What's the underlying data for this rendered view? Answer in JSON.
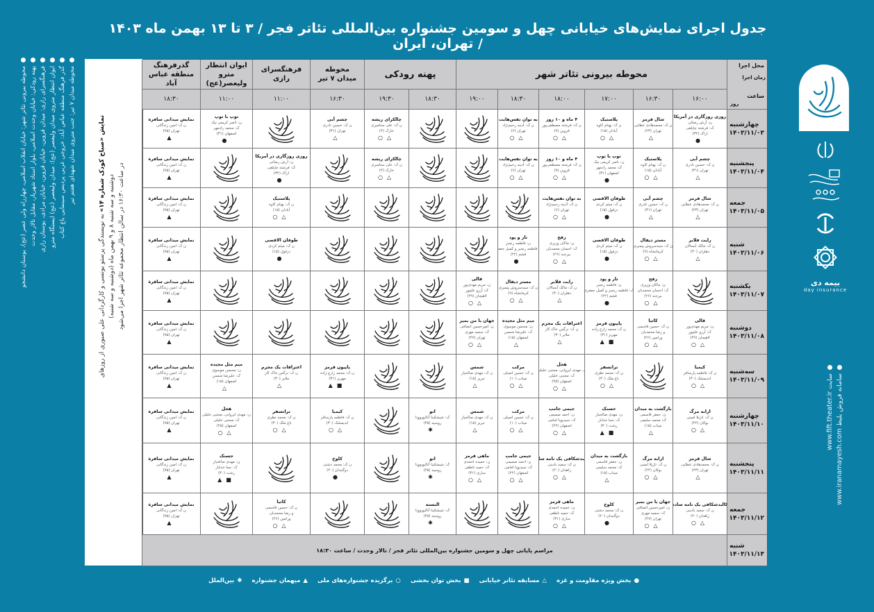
{
  "title": "جدول اجرای نمایش‌های خیابانی چهل و سومین جشنواره بین‌المللی تئاتر فجر / ۳ تا ۱۳ بهمن ماه ۱۴۰۳ / تهران، ایران",
  "sidebar": [
    "محوطه بیرونی تئاتر شهر: خیابان انقلاب اسلامی، چهارراه ولی عصر (عج)، بوستان دانشجو",
    "پهنه رودکی: خیابان وحدت اسلامی، بلوار استاد شهریار، مقابل تالار وحدت",
    "فرهنگسرای رازی: میدان قزوین، خیابان قزوین، خیابان مرادی، بوستان رازی",
    "ایوان انتظار متروی میدان ولیعصر (عج): میدان ولیعصر (عج) ایستگاه مترو",
    "گذر فرهنگ منطقه عباس آباد: خروجی غربی پردیس سینمایی باغ کتاب",
    "محوطه میدان ۷ تیر: جنب متروی میدان شهدای هفتم تیر"
  ],
  "note": {
    "bold": "نمایش «صباح کودک شماره ۱۴»",
    "line1": "به نویسندگی پرستو یونسی و کارگردانی علی صبوری از روزهای دوشنبه و سه شنبه ۸ و ۹ بهمن ماه (دوشنبه و سه شنبه)",
    "line2": "در ساعت ۱۶:۳۰ در سالن انتظار مجموعه تئاتر شهر اجرا می‌شود"
  },
  "right_strip": [
    "سایت www.fift.theater.ir",
    "سامانه فروش بلیط www.iranamayesh.com"
  ],
  "sponsors": {
    "insurance_name": "بیمه دی",
    "insurance_latin": "day insurance"
  },
  "table": {
    "corner": {
      "venue": "محل اجرا",
      "time": "زمان اجرا",
      "hour": "ساعت",
      "day": "روز"
    },
    "venues": [
      "محوطه بیرونی تئاتر شهر",
      "پهنه رودکی",
      "محوطه\nمیدان ۷ تیر",
      "فرهنگسرای\nرازی",
      "ایوان انتظار\nمترو ولیعصر(عج)",
      "گذرفرهنگ\nمنطقه عباس آباد"
    ],
    "times": [
      "۱۶:۰۰",
      "۱۶:۳۰",
      "۱۷:۰۰",
      "۱۸:۰۰",
      "۱۸:۳۰",
      "۱۹:۰۰",
      "۱۸:۳۰",
      "۱۹:۳۰",
      "۱۶:۳۰",
      "۱۱:۰۰",
      "۱۱:۰۰",
      "۱۸:۳۰"
    ],
    "rows": [
      {
        "day": "چهارشنبه",
        "date": "۱۴۰۳/۱۱/۰۳",
        "cells": [
          "roozi",
          "shal",
          "plastic",
          "mah",
          "nafas",
          "L",
          "L",
          "chalkora",
          "cheshm",
          "L",
          "toop",
          "safere"
        ]
      },
      {
        "day": "پنجشنبه",
        "date": "۱۴۰۳/۱۱/۰۴",
        "cells": [
          "cheshm",
          "plastic",
          "toop",
          "mah",
          "nafas",
          "L",
          "L",
          "chalkora",
          "L",
          "roozi",
          "L",
          "safere"
        ]
      },
      {
        "day": "جمعه",
        "date": "۱۴۰۳/۱۱/۰۵",
        "cells": [
          "shal",
          "cheshm",
          "toofan",
          "nafas",
          "L",
          "L",
          "L",
          "L",
          "L",
          "plastic",
          "L",
          "safere"
        ]
      },
      {
        "day": "شنبه",
        "date": "۱۴۰۳/۱۱/۰۶",
        "cells": [
          "right",
          "mister",
          "toofan",
          "rafah",
          "taropood",
          "L",
          "L",
          "L",
          "L",
          "toofan",
          "L",
          "safere"
        ]
      },
      {
        "day": "یکشنبه",
        "date": "۱۴۰۳/۱۱/۰۷",
        "cells": [
          "L",
          "rafah",
          "taropood",
          "right",
          "mister",
          "ghali",
          "L",
          "L",
          "L",
          "L",
          "L",
          "safere"
        ]
      },
      {
        "day": "دوشنبه",
        "date": "۱۴۰۳/۱۱/۰۸",
        "cells": [
          "ghali",
          "katia",
          "papion",
          "eteraf",
          "mim",
          "jahan",
          "L",
          "L",
          "L",
          "L",
          "L",
          "safere"
        ]
      },
      {
        "day": "سه‌شنبه",
        "date": "۱۴۰۳/۱۱/۰۹",
        "cells": [
          "kimia",
          "L",
          "transfer",
          "hajal",
          "morakab",
          "shams",
          "L",
          "L",
          "papion",
          "eteraf",
          "mim",
          "safere"
        ]
      },
      {
        "day": "چهارشنبه",
        "date": "۱۴۰۳/۱۱/۱۰",
        "cells": [
          "arabe",
          "bazgasht",
          "hasanak",
          "jimmy",
          "morakab",
          "shams",
          "eto",
          "L",
          "kimia",
          "transfer",
          "hajal",
          "safere"
        ]
      },
      {
        "day": "پنجشنبه",
        "date": "۱۴۰۳/۱۱/۱۱",
        "cells": [
          "shal",
          "arabe",
          "bazgasht",
          "kalbod",
          "jimmy",
          "mahi",
          "eto",
          "L",
          "kolookh",
          "L",
          "hasanak",
          "safere"
        ]
      },
      {
        "day": "جمعه",
        "date": "۱۴۰۳/۱۱/۱۲",
        "cells": [
          "kalbod",
          "jahan",
          "kolookh",
          "mahi",
          "L",
          "L",
          "basteh",
          "L",
          "L",
          "katia",
          "L",
          "safere"
        ]
      }
    ],
    "closing": {
      "day": "شنبه",
      "date": "۱۴۰۳/۱۱/۱۳",
      "text": "مراسم پایانی چهل و سومین جشنواره بین‌المللی تئاتر فجر / تالار وحدت / ساعت ۱۸:۳۰"
    }
  },
  "shows": {
    "roozi": {
      "t": "روزی روزگاری در آمریکا",
      "l": [
        "ن: آرش رضائی",
        "ک: فرشته چاپلقی",
        "اراک (۳۲)"
      ],
      "m": [
        "dot"
      ]
    },
    "shal": {
      "t": "شال قرمز",
      "l": [
        "ن ک: محمدهادی عطایی",
        "تهران (۲۳)"
      ],
      "m": [
        "tri"
      ]
    },
    "plastic": {
      "t": "پلاستیک",
      "l": [
        "ن ک: بهنام کاوه",
        "آبادان (۱۵)"
      ],
      "m": [
        "tri",
        "circ"
      ]
    },
    "mah": {
      "t": "۴ ماه و ۱۰ روز",
      "l": [
        "ن ک: فرشته مصطفی‌پور",
        "قزوین (۹)"
      ],
      "m": [
        "tri",
        "circ"
      ]
    },
    "nafas": {
      "t": "به توان نفس‌هایت",
      "l": [
        "ن ک: آدینه رحیم‌نژاد",
        "تهران (۶)"
      ],
      "m": [
        "tri",
        "circ"
      ]
    },
    "chalkora": {
      "t": "چالکرای ریشه",
      "l": [
        "ن ک: علی ستامیری",
        "خارک (۴)"
      ],
      "m": [
        "tri",
        "circ"
      ]
    },
    "cheshm": {
      "t": "چشم آبی",
      "l": [
        "ن ک: حسین نادری",
        "تهران (۳۱)"
      ],
      "m": [
        "tri"
      ]
    },
    "toop": {
      "t": "توپ با توپ",
      "l": [
        "ن: ناصر کریمی نیک",
        "ک: محمد رادمهر",
        "اصفهان (۳۱)"
      ],
      "m": [
        "dot"
      ]
    },
    "safere": {
      "t": "نمایش میدانی سافرة",
      "l": [
        "ن ک: امین زندگانی",
        "تهران (۷۵)"
      ],
      "m": [
        "hat"
      ]
    },
    "toofan": {
      "t": "طوفان الاقصی",
      "l": [
        "ن ک: میثم کردی",
        "دزفول (۱۵)"
      ],
      "m": [
        "dot"
      ]
    },
    "right": {
      "t": "رایت فلایر",
      "l": [
        "ن ک: مالک آبسالان",
        "دهلران (۳۰)"
      ],
      "m": [
        "tri"
      ]
    },
    "mister": {
      "t": "مستر دیفال",
      "l": [
        "ن ک: سیدسروش پیمبری",
        "کرمانشاه (۹)"
      ],
      "m": [
        "tri",
        "circ"
      ]
    },
    "rafah": {
      "t": "رفح",
      "l": [
        "ن: ماکان وزیری",
        "ک: احسان محمدیان",
        "بیرجند (۲۶)"
      ],
      "m": [
        "tri",
        "circ"
      ]
    },
    "taropood": {
      "t": "تار و پود",
      "l": [
        "ن: فاطمه رنجبر",
        "ک: فاطمه رنجبر و کمیل جعفری",
        "قشم (۲۲)"
      ],
      "m": [
        "dot"
      ]
    },
    "ghali": {
      "t": "قالی",
      "l": [
        "ن: مریم مهدی‌پور",
        "ک: آرزو علیپور",
        "لاهیجان (۲۹)"
      ],
      "m": [
        "tri",
        "circ"
      ]
    },
    "katia": {
      "t": "کاتیا",
      "l": [
        "ن ک: حسین قاسمی",
        "و رضا محمدیان",
        "ورامین (۲۶)"
      ],
      "m": [
        "tri",
        "circ"
      ]
    },
    "papion": {
      "t": "پاپیون قرمز",
      "l": [
        "ن ک: محمد زارع زاده",
        "مهریز (۳۱)"
      ],
      "m": [
        "sq",
        "hat"
      ]
    },
    "eteraf": {
      "t": "اعترافات یک مجرم",
      "l": [
        "ن ک: نرگس خاک کار",
        "ملایر (۳۰)"
      ],
      "m": [
        "tri"
      ]
    },
    "mim": {
      "t": "میم مثل مجیده",
      "l": [
        "ن: محسن موسوی",
        "ک: علیرضا شمس",
        "اصفهان (۱۵)"
      ],
      "m": [
        "tri"
      ]
    },
    "jahan": {
      "t": "جهان با من بمیر",
      "l": [
        "ن: امیرحسین انصافی",
        "ک: سمیه مهری",
        "تهران (۴۷)"
      ],
      "m": [
        "tri",
        "circ"
      ]
    },
    "kimia": {
      "t": "کیمیا",
      "l": [
        "ن ک: فاطمه پارسافر",
        "اندیمشک (۳۰)"
      ],
      "m": [
        "tri",
        "circ"
      ]
    },
    "transfer": {
      "t": "ترانسفر",
      "l": [
        "ن ک: محمد نظری",
        "باغ ملک (۳۰)"
      ],
      "m": [
        "tri",
        "circ"
      ]
    },
    "hajal": {
      "t": "هجل",
      "l": [
        "ن: مهدی ایروانی، مجتبی خلیلی",
        "ک: مجتبی خلیلی",
        "اصفهان (۴۵)"
      ],
      "m": [
        "tri",
        "circ"
      ]
    },
    "morakab": {
      "t": "مرکب",
      "l": [
        "ن ک: حسین اصیلی",
        "میناب (۱۰)"
      ],
      "m": [
        "tri",
        "circ"
      ]
    },
    "shams": {
      "t": "شمس",
      "l": [
        "ن ک: مهدی صالحیار",
        "تبریز (۱۵)"
      ],
      "m": [
        "tri"
      ]
    },
    "arabe": {
      "t": "ارابه مرگ",
      "l": [
        "ن ک: نازیلا امینی",
        "بوکان (۲۲)"
      ],
      "m": [
        "tri",
        "circ"
      ]
    },
    "bazgasht": {
      "t": "بازگشت به میدان",
      "l": [
        "ن: جعفر قاسمی",
        "ک: محمد سلیمی",
        "میناب (۱۵)"
      ],
      "m": [
        "tri"
      ]
    },
    "hasanak": {
      "t": "حسنک",
      "l": [
        "ن: مهدی صالحیار",
        "ک: نسا خدایار",
        "رشت (۳۰)"
      ],
      "m": [
        "sq",
        "hat"
      ]
    },
    "jimmy": {
      "t": "جیمی جامپ",
      "l": [
        "ن: احمد صمیمی",
        "ک: سیدپویا امامی",
        "اصفهان (۲۲)"
      ],
      "m": [
        "tri",
        "circ"
      ]
    },
    "eto": {
      "t": "اتو",
      "l": [
        "ک: شیشکینا آنالیوبوونا",
        "روسیه (۴۵)"
      ],
      "m": [
        "star"
      ]
    },
    "kalbod": {
      "t": "کالبدشکافی یک نامه ساده",
      "l": [
        "ن ک: سعید بادینی",
        "زاهدان (۴۰)"
      ],
      "m": [
        "tri",
        "circ"
      ]
    },
    "mahi": {
      "t": "ماهی قرمز",
      "l": [
        "ن: حمیده احمدی",
        "ک: حمید ناطقی",
        "ساری (۳۱)"
      ],
      "m": [
        "tri",
        "circ"
      ]
    },
    "kolookh": {
      "t": "کلوخ",
      "l": [
        "ن ک: محمد دشتی",
        "دوگنبدان (۲۰)"
      ],
      "m": [
        "dot"
      ]
    },
    "basteh": {
      "t": "البسته",
      "l": [
        "ک: شیشکینا آنالیوبوونا",
        "روسیه (۴۵)"
      ],
      "m": [
        "star"
      ]
    }
  },
  "marks": {
    "dot": "●",
    "tri": "△",
    "sq": "■",
    "circ": "○",
    "hat": "▲",
    "star": "✱"
  },
  "legend": [
    {
      "mark": "dot",
      "label": "بخش ویژه مقاومت و غزه"
    },
    {
      "mark": "tri",
      "label": "مسابقه تئاتر خیابانی"
    },
    {
      "mark": "sq",
      "label": "بخش توان بخشی"
    },
    {
      "mark": "circ",
      "label": "برگزیده جشنواره‌های ملی"
    },
    {
      "mark": "hat",
      "label": "میهمان جشنواره"
    },
    {
      "mark": "star",
      "label": "بین‌الملل"
    }
  ],
  "colors": {
    "background": "#0b7fa6",
    "header_gray": "#cbcbcd",
    "cell": "#ffffff"
  }
}
